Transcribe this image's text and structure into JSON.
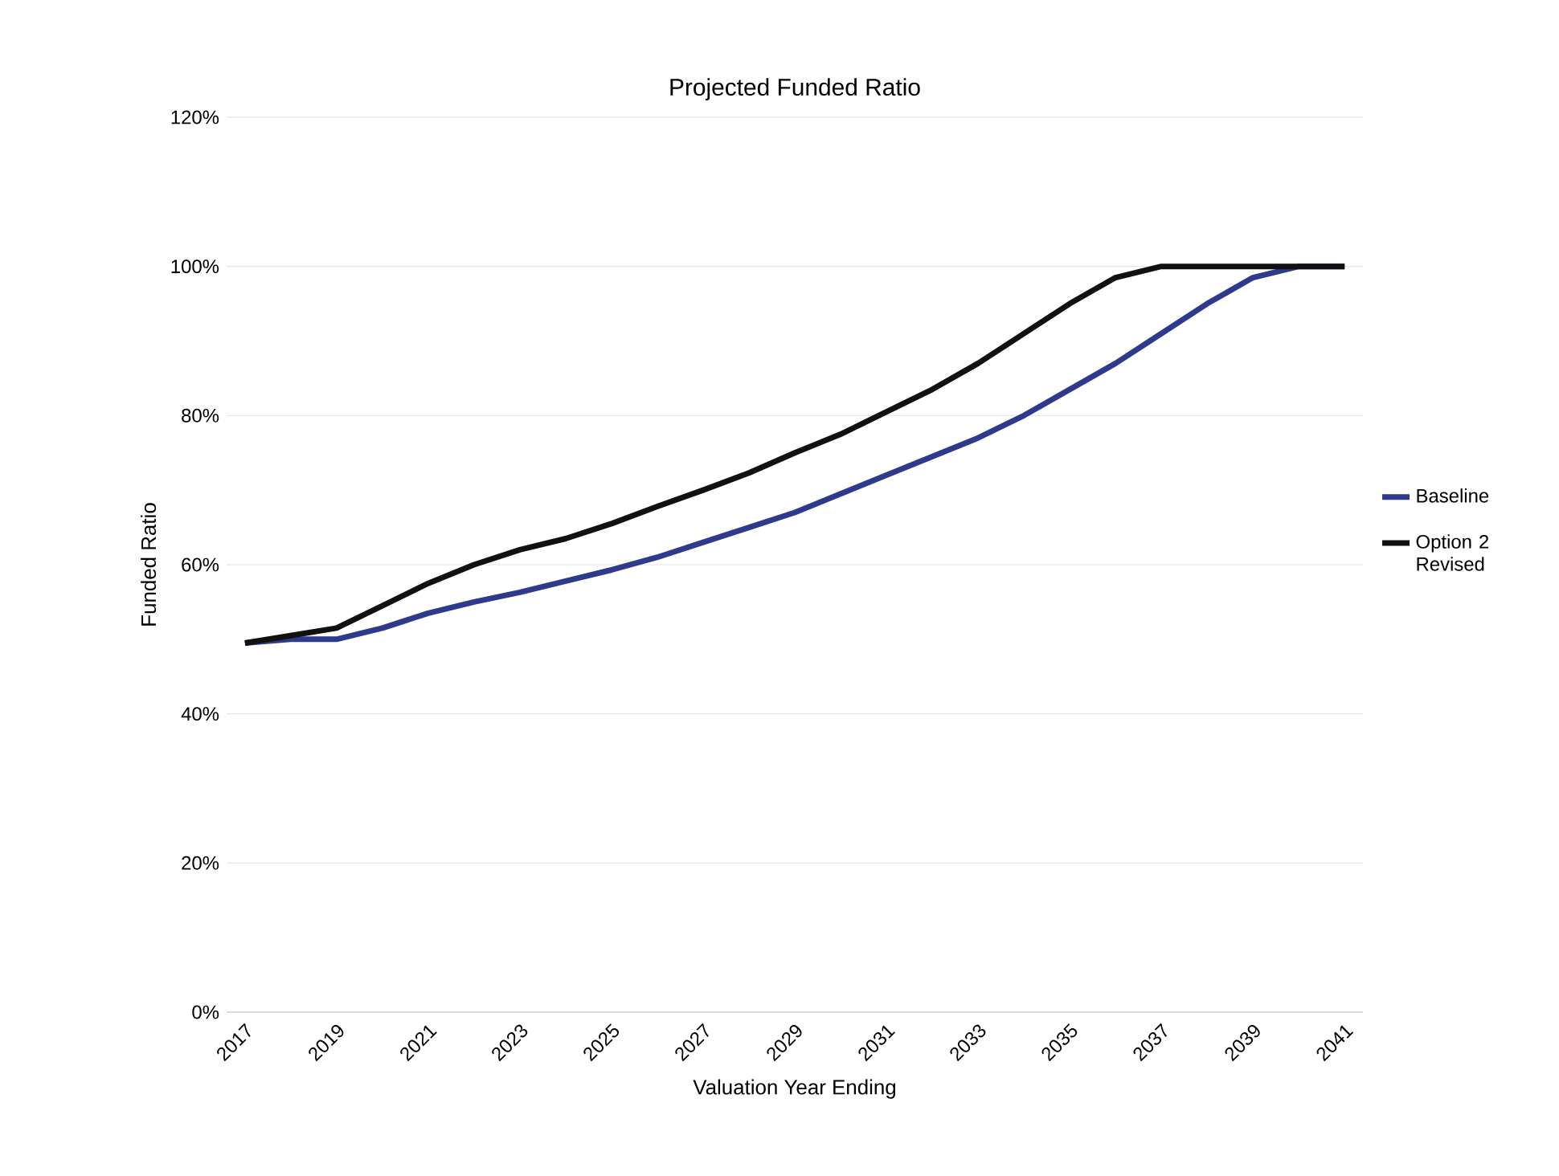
{
  "chart_data": {
    "type": "line",
    "title": "Projected Funded Ratio",
    "xlabel": "Valuation Year Ending",
    "ylabel": "Funded Ratio",
    "categories": [
      "2017",
      null,
      "2019",
      null,
      "2021",
      null,
      "2023",
      null,
      "2025",
      null,
      "2027",
      null,
      "2029",
      null,
      "2031",
      null,
      "2033",
      null,
      "2035",
      null,
      "2037",
      null,
      "2039",
      null,
      "2041"
    ],
    "series": [
      {
        "name": "Baseline",
        "color": "#2e3a8c",
        "values": [
          49.5,
          50,
          50,
          51.5,
          53.5,
          55,
          56.3,
          57.8,
          59.3,
          61,
          63,
          65,
          67,
          69.5,
          72,
          74.5,
          77,
          80,
          83.5,
          87,
          91,
          95,
          98.5,
          100,
          100
        ]
      },
      {
        "name": "Option 2 Revised",
        "color": "#111111",
        "values": [
          49.5,
          50.5,
          51.5,
          54.5,
          57.5,
          60,
          62,
          63.5,
          65.5,
          67.8,
          70,
          72.3,
          75,
          77.5,
          80.5,
          83.5,
          87,
          91,
          95,
          98.5,
          100,
          100,
          100,
          100,
          100
        ]
      }
    ],
    "ylim": [
      0,
      120
    ],
    "yticks": [
      {
        "value": 0,
        "label": "0%"
      },
      {
        "value": 20,
        "label": "20%"
      },
      {
        "value": 40,
        "label": "40%"
      },
      {
        "value": 60,
        "label": "60%"
      },
      {
        "value": 80,
        "label": "80%"
      },
      {
        "value": 100,
        "label": "100%"
      },
      {
        "value": 120,
        "label": "120%"
      }
    ],
    "grid": "y",
    "legend": "right",
    "marker": "none",
    "line_style": "solid"
  }
}
